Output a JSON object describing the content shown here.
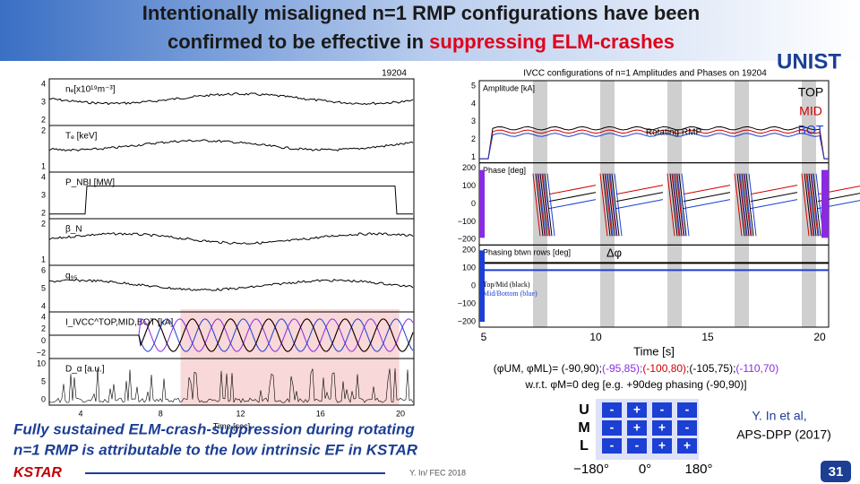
{
  "header": {
    "title_line1": "Intentionally misaligned n=1 RMP configurations have been",
    "title_line2_black": "confirmed to be effective in ",
    "title_line2_red": "suppressing ELM-crashes",
    "logo": "UNIST"
  },
  "left_plot": {
    "shot": "19204",
    "xlabel": "Time [sec]",
    "xticks": [
      "4",
      "8",
      "12",
      "16",
      "20"
    ],
    "panels": [
      {
        "label": "nₑ[x10¹⁹m⁻³]",
        "ticks": [
          "4",
          "3",
          "2"
        ]
      },
      {
        "label": "Tₑ [keV]",
        "ticks": [
          "2",
          "1"
        ]
      },
      {
        "label": "P_NBI [MW]",
        "ticks": [
          "4",
          "3",
          "2"
        ]
      },
      {
        "label": "β_N",
        "ticks": [
          "2",
          "1"
        ]
      },
      {
        "label": "q₉₅",
        "ticks": [
          "6",
          "5",
          "4"
        ]
      },
      {
        "label": "I_IVCC^TOP,MID,BOT [kA]",
        "ticks": [
          "4",
          "2",
          "0",
          "−2"
        ]
      },
      {
        "label": "D_α [a.u.]",
        "ticks": [
          "10",
          "5",
          "0"
        ]
      }
    ]
  },
  "right_plot": {
    "title": "IVCC configurations of n=1 Amplitudes and Phases on 19204",
    "xlabel": "Time [s]",
    "xticks": [
      "5",
      "10",
      "15",
      "20"
    ],
    "panels": [
      {
        "label": "Amplitude [kA]",
        "ticks": [
          "5",
          "4",
          "3",
          "2",
          "1"
        ]
      },
      {
        "label": "Phase [deg]",
        "ticks": [
          "200",
          "100",
          "0",
          "−100",
          "−200"
        ]
      },
      {
        "label": "Phasing btwn rows [deg]",
        "ticks": [
          "200",
          "100",
          "0",
          "−100",
          "−200"
        ]
      }
    ],
    "legend": [
      "TOP",
      "MID",
      "BOT"
    ],
    "rotating": "Rotating RMP",
    "dphi": "Δφ",
    "phasing_legend": [
      "Top/Mid (black)",
      "Mid/Bottom (blue)"
    ]
  },
  "caption": {
    "parts": [
      {
        "text": "(φUM, φML)= (-90,90);",
        "color": "#000000"
      },
      {
        "text": "(-95,85);",
        "color": "#8a2be2"
      },
      {
        "text": "(-100,80);",
        "color": "#d00000"
      },
      {
        "text": "(-105,75);",
        "color": "#000000"
      },
      {
        "text": "(-110,70)",
        "color": "#8a2be2"
      }
    ],
    "line2": "w.r.t. φM=0 deg [e.g. +90deg phasing (-90,90)]"
  },
  "conclusion": "Fully sustained ELM-crash-suppression during rotating n=1 RMP is attributable to the low intrinsic EF in KSTAR",
  "footer": {
    "kstar": "KSTAR",
    "credit": "Y. In/ FEC 2018",
    "page": "31"
  },
  "reference": {
    "line1": "Y. In et al,",
    "line2": "APS-DPP (2017)"
  },
  "sign_table": {
    "rows": [
      {
        "label": "U",
        "signs": [
          "-",
          "+",
          "-",
          "-"
        ]
      },
      {
        "label": "M",
        "signs": [
          "-",
          "+",
          "+",
          "-"
        ]
      },
      {
        "label": "L",
        "signs": [
          "-",
          "-",
          "+",
          "+"
        ]
      }
    ],
    "axis": [
      "−180°",
      "0°",
      "180°"
    ]
  }
}
